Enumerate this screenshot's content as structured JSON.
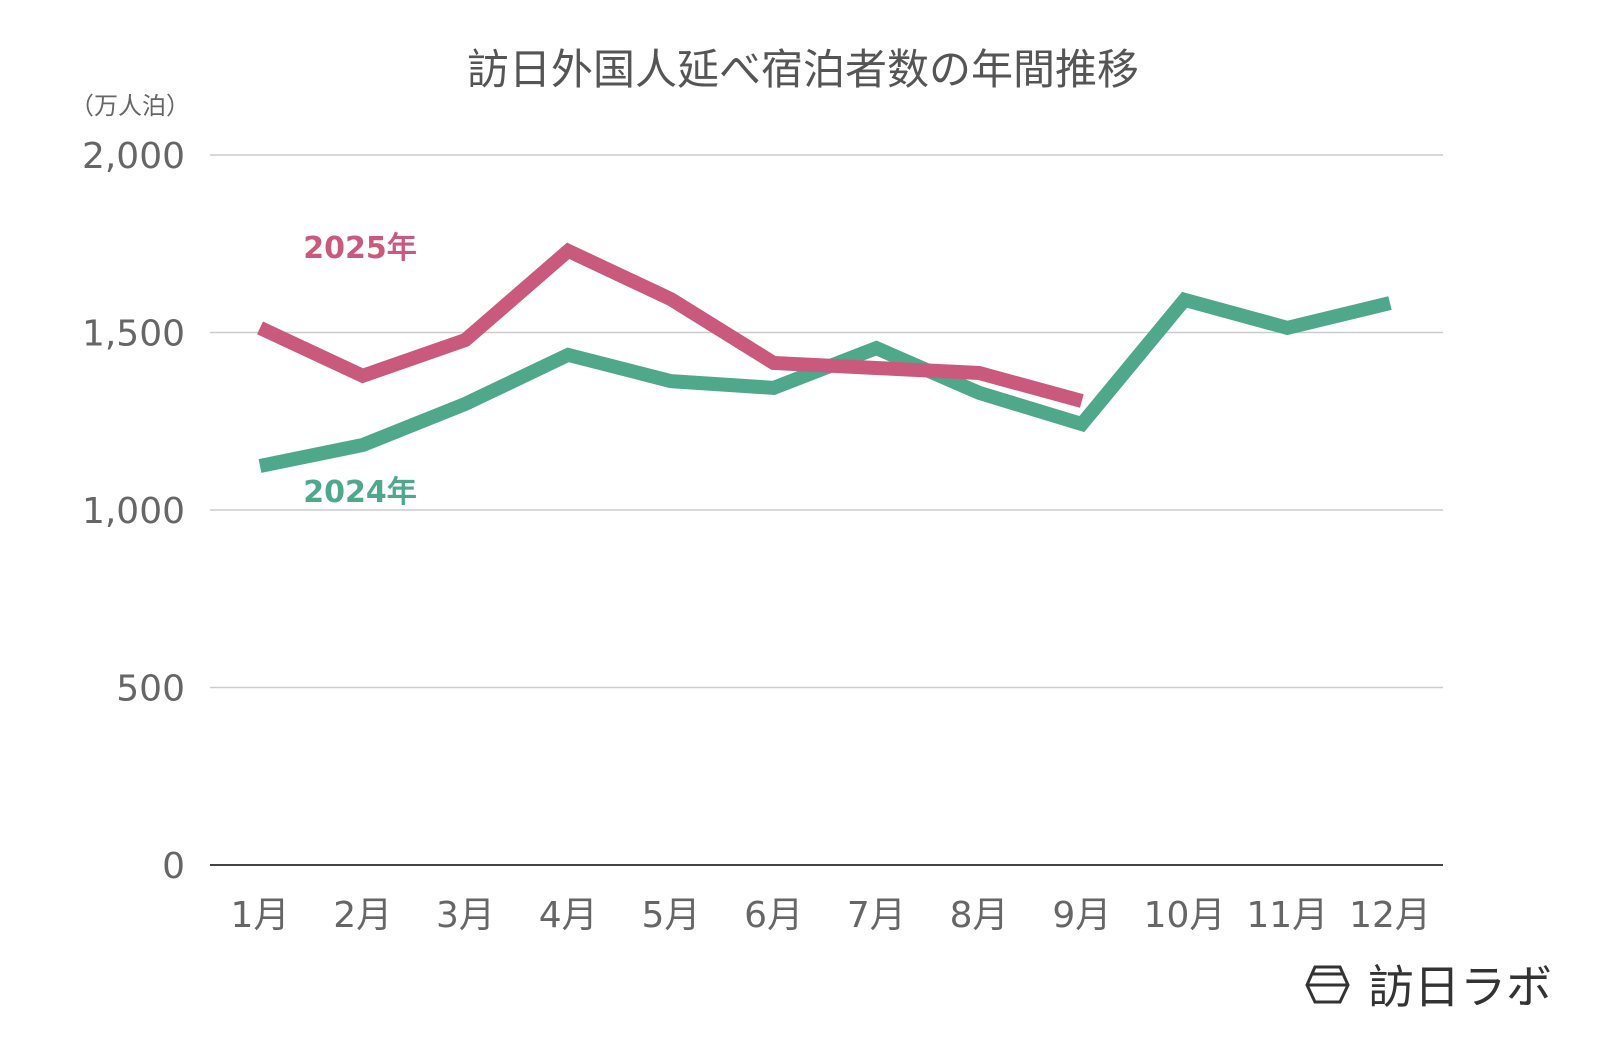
{
  "chart_data": {
    "type": "line",
    "title": "訪日外国人延べ宿泊者数の年間推移",
    "ylabel": "（万人泊）",
    "xlabel": "",
    "ylim": [
      0,
      2000
    ],
    "yticks": [
      0,
      500,
      1000,
      1500,
      2000
    ],
    "ytick_labels": [
      "0",
      "500",
      "1,000",
      "1,500",
      "2,000"
    ],
    "grid": true,
    "categories": [
      "1月",
      "2月",
      "3月",
      "4月",
      "5月",
      "6月",
      "7月",
      "8月",
      "9月",
      "10月",
      "11月",
      "12月"
    ],
    "series": [
      {
        "name": "2024年",
        "color": "#4fa88a",
        "values": [
          1124,
          1183,
          1299,
          1437,
          1363,
          1344,
          1456,
          1330,
          1242,
          1592,
          1513,
          1583
        ]
      },
      {
        "name": "2025年",
        "color": "#c95a7e",
        "values": [
          1513,
          1378,
          1479,
          1730,
          1594,
          1414,
          1400,
          1386,
          1307,
          null,
          null,
          null
        ]
      }
    ]
  },
  "logo": {
    "text": "訪日ラボ",
    "icon": "hexagon-logo-icon"
  }
}
